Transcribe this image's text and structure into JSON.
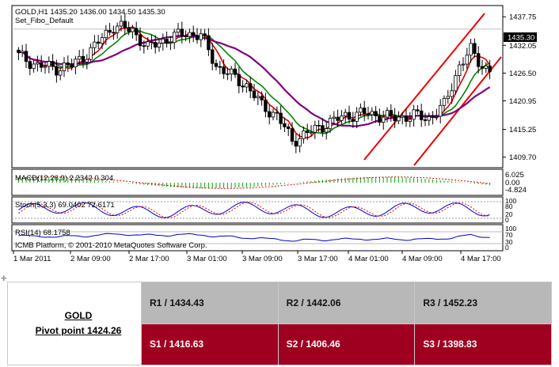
{
  "chart": {
    "header": "GOLD,H1  1435.20 1436.00 1434.50 1435.30",
    "template": "Set_Fibo_Default",
    "price_ticks": [
      "1437.75",
      "1432.05",
      "1426.50",
      "1420.95",
      "1415.25",
      "1409.70"
    ],
    "current_price": "1435.30",
    "macd": {
      "label": "MACD(12,26,9) 2.2342 0.304",
      "ticks": [
        "6.025",
        "0.00",
        "-4.824"
      ]
    },
    "stoch": {
      "label": "Stoch(5,3,3) 69.0402 72.6171",
      "ticks": [
        "100",
        "80",
        "20",
        "0"
      ]
    },
    "rsi": {
      "label": "RSI(14) 68.1758",
      "ticks": [
        "100",
        "70",
        "30",
        "0"
      ]
    },
    "copyright": "ICMB Platform, © 2001-2010 MetaQuotes Software Corp.",
    "time_labels": [
      "1 Mar 2011",
      "2 Mar 09:00",
      "2 Mar 17:00",
      "3 Mar 01:00",
      "3 Mar 09:00",
      "3 Mar 17:00",
      "4 Mar 01:00",
      "4 Mar 09:00",
      "4 Mar 17:00"
    ]
  },
  "pivot": {
    "symbol": "GOLD",
    "pivot_text": "Pivot point 1424.26",
    "resistances": [
      "R1 / 1434.43",
      "R2 / 1442.06",
      "R3 / 1452.23"
    ],
    "supports": [
      "S1 / 1416.63",
      "S2 / 1406.46",
      "S3 / 1398.83"
    ]
  },
  "colors": {
    "bull": "#ffffff",
    "bear": "#000000",
    "ma_fast": "#dd0000",
    "ma_mid": "#008800",
    "ma_slow": "#800080",
    "channel": "#ee0000",
    "macd_signal": "#dd0000",
    "macd_hist": "#00aa00",
    "stoch_main": "#0000dd",
    "stoch_signal": "#dd0000",
    "rsi": "#0000cc",
    "resistance_bg": "#b8b8b8",
    "support_bg": "#a00020"
  }
}
